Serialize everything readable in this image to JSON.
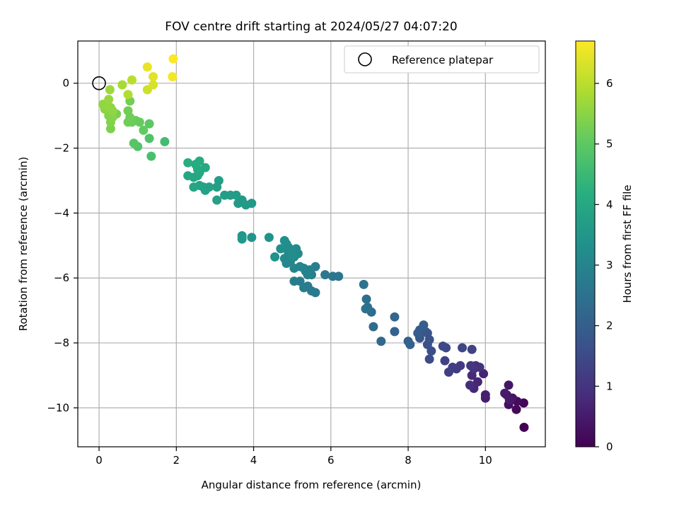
{
  "chart_data": {
    "type": "scatter",
    "title": "FOV centre drift starting at 2024/05/27 04:07:20",
    "xlabel": "Angular distance from reference (arcmin)",
    "ylabel": "Rotation from reference (arcmin)",
    "xlim": [
      -0.55,
      11.55
    ],
    "ylim": [
      -11.2,
      1.3
    ],
    "xticks": [
      0,
      2,
      4,
      6,
      8,
      10
    ],
    "yticks": [
      0,
      -2,
      -4,
      -6,
      -8,
      -10
    ],
    "xtick_labels": [
      "0",
      "2",
      "4",
      "6",
      "8",
      "10"
    ],
    "ytick_labels": [
      "0",
      "−2",
      "−4",
      "−6",
      "−8",
      "−10"
    ],
    "grid": true,
    "legend": {
      "position": "top-right",
      "entries": [
        {
          "label": "Reference platepar",
          "marker": "open-circle"
        }
      ]
    },
    "reference_point": {
      "x": 0,
      "y": 0
    },
    "colorbar": {
      "label": "Hours from first FF file",
      "colormap": "viridis",
      "range": [
        0,
        6.7
      ],
      "ticks": [
        0,
        1,
        2,
        3,
        4,
        5,
        6
      ],
      "tick_labels": [
        "0",
        "1",
        "2",
        "3",
        "4",
        "5",
        "6"
      ]
    },
    "series": [
      {
        "points": [
          {
            "x": 11.0,
            "y": -10.6,
            "h": 0.0
          },
          {
            "x": 10.99,
            "y": -9.85,
            "h": 0.1
          },
          {
            "x": 10.8,
            "y": -10.05,
            "h": 0.15
          },
          {
            "x": 10.82,
            "y": -9.8,
            "h": 0.2
          },
          {
            "x": 10.6,
            "y": -9.9,
            "h": 0.25
          },
          {
            "x": 10.55,
            "y": -9.6,
            "h": 0.3
          },
          {
            "x": 10.7,
            "y": -9.7,
            "h": 0.35
          },
          {
            "x": 10.6,
            "y": -9.3,
            "h": 0.4
          },
          {
            "x": 10.62,
            "y": -9.75,
            "h": 0.45
          },
          {
            "x": 10.5,
            "y": -9.55,
            "h": 0.5
          },
          {
            "x": 10.0,
            "y": -9.7,
            "h": 0.55
          },
          {
            "x": 10.0,
            "y": -9.6,
            "h": 0.6
          },
          {
            "x": 9.95,
            "y": -8.95,
            "h": 0.65
          },
          {
            "x": 9.8,
            "y": -9.2,
            "h": 0.7
          },
          {
            "x": 9.7,
            "y": -9.4,
            "h": 0.75
          },
          {
            "x": 9.65,
            "y": -9.0,
            "h": 0.8
          },
          {
            "x": 9.6,
            "y": -9.3,
            "h": 0.85
          },
          {
            "x": 9.75,
            "y": -8.7,
            "h": 0.9
          },
          {
            "x": 9.85,
            "y": -8.75,
            "h": 0.95
          },
          {
            "x": 9.7,
            "y": -8.8,
            "h": 1.0
          },
          {
            "x": 9.62,
            "y": -8.7,
            "h": 1.05
          },
          {
            "x": 9.35,
            "y": -8.7,
            "h": 1.1
          },
          {
            "x": 9.25,
            "y": -8.8,
            "h": 1.15
          },
          {
            "x": 9.15,
            "y": -8.75,
            "h": 1.2
          },
          {
            "x": 9.05,
            "y": -8.9,
            "h": 1.25
          },
          {
            "x": 8.95,
            "y": -8.55,
            "h": 1.3
          },
          {
            "x": 9.65,
            "y": -8.2,
            "h": 1.35
          },
          {
            "x": 9.4,
            "y": -8.15,
            "h": 1.4
          },
          {
            "x": 8.98,
            "y": -8.15,
            "h": 1.45
          },
          {
            "x": 8.9,
            "y": -8.1,
            "h": 1.5
          },
          {
            "x": 8.55,
            "y": -8.5,
            "h": 1.55
          },
          {
            "x": 8.6,
            "y": -8.25,
            "h": 1.6
          },
          {
            "x": 8.5,
            "y": -8.05,
            "h": 1.65
          },
          {
            "x": 8.55,
            "y": -7.9,
            "h": 1.7
          },
          {
            "x": 8.5,
            "y": -7.7,
            "h": 1.75
          },
          {
            "x": 8.45,
            "y": -7.65,
            "h": 1.8
          },
          {
            "x": 8.3,
            "y": -7.85,
            "h": 1.85
          },
          {
            "x": 8.3,
            "y": -7.6,
            "h": 1.9
          },
          {
            "x": 8.4,
            "y": -7.45,
            "h": 1.95
          },
          {
            "x": 8.25,
            "y": -7.7,
            "h": 2.0
          },
          {
            "x": 8.0,
            "y": -7.95,
            "h": 2.05
          },
          {
            "x": 8.05,
            "y": -8.05,
            "h": 2.1
          },
          {
            "x": 7.65,
            "y": -7.65,
            "h": 2.15
          },
          {
            "x": 7.65,
            "y": -7.2,
            "h": 2.2
          },
          {
            "x": 7.3,
            "y": -7.95,
            "h": 2.25
          },
          {
            "x": 7.1,
            "y": -7.5,
            "h": 2.3
          },
          {
            "x": 7.05,
            "y": -7.05,
            "h": 2.35
          },
          {
            "x": 6.95,
            "y": -6.9,
            "h": 2.4
          },
          {
            "x": 6.92,
            "y": -6.65,
            "h": 2.45
          },
          {
            "x": 6.9,
            "y": -6.95,
            "h": 2.5
          },
          {
            "x": 6.85,
            "y": -6.2,
            "h": 2.55
          },
          {
            "x": 6.2,
            "y": -5.95,
            "h": 2.6
          },
          {
            "x": 6.05,
            "y": -5.95,
            "h": 2.62
          },
          {
            "x": 5.85,
            "y": -5.9,
            "h": 2.65
          },
          {
            "x": 5.6,
            "y": -6.45,
            "h": 2.7
          },
          {
            "x": 5.5,
            "y": -6.4,
            "h": 2.72
          },
          {
            "x": 5.4,
            "y": -6.25,
            "h": 2.75
          },
          {
            "x": 5.3,
            "y": -6.3,
            "h": 2.78
          },
          {
            "x": 5.2,
            "y": -6.1,
            "h": 2.8
          },
          {
            "x": 5.05,
            "y": -6.1,
            "h": 2.82
          },
          {
            "x": 5.6,
            "y": -5.65,
            "h": 2.85
          },
          {
            "x": 5.5,
            "y": -5.9,
            "h": 2.88
          },
          {
            "x": 5.45,
            "y": -5.75,
            "h": 2.9
          },
          {
            "x": 5.35,
            "y": -5.8,
            "h": 2.92
          },
          {
            "x": 5.3,
            "y": -5.7,
            "h": 2.95
          },
          {
            "x": 5.4,
            "y": -5.9,
            "h": 2.97
          },
          {
            "x": 5.2,
            "y": -5.65,
            "h": 3.0
          },
          {
            "x": 5.05,
            "y": -5.7,
            "h": 3.02
          },
          {
            "x": 4.95,
            "y": -5.5,
            "h": 3.05
          },
          {
            "x": 4.85,
            "y": -5.55,
            "h": 3.07
          },
          {
            "x": 4.8,
            "y": -5.4,
            "h": 3.1
          },
          {
            "x": 4.9,
            "y": -5.2,
            "h": 3.12
          },
          {
            "x": 5.05,
            "y": -5.35,
            "h": 3.15
          },
          {
            "x": 5.15,
            "y": -5.25,
            "h": 3.17
          },
          {
            "x": 5.1,
            "y": -5.1,
            "h": 3.2
          },
          {
            "x": 5.0,
            "y": -5.3,
            "h": 3.22
          },
          {
            "x": 4.9,
            "y": -5.05,
            "h": 3.25
          },
          {
            "x": 4.85,
            "y": -4.95,
            "h": 3.27
          },
          {
            "x": 4.7,
            "y": -5.1,
            "h": 3.3
          },
          {
            "x": 4.8,
            "y": -4.85,
            "h": 3.32
          },
          {
            "x": 4.55,
            "y": -5.35,
            "h": 3.35
          },
          {
            "x": 4.4,
            "y": -4.75,
            "h": 3.4
          },
          {
            "x": 3.95,
            "y": -4.75,
            "h": 3.45
          },
          {
            "x": 3.7,
            "y": -4.7,
            "h": 3.5
          },
          {
            "x": 3.7,
            "y": -4.8,
            "h": 3.52
          },
          {
            "x": 3.95,
            "y": -3.7,
            "h": 3.55
          },
          {
            "x": 3.8,
            "y": -3.75,
            "h": 3.58
          },
          {
            "x": 3.7,
            "y": -3.6,
            "h": 3.6
          },
          {
            "x": 3.6,
            "y": -3.7,
            "h": 3.62
          },
          {
            "x": 3.55,
            "y": -3.45,
            "h": 3.65
          },
          {
            "x": 3.4,
            "y": -3.45,
            "h": 3.68
          },
          {
            "x": 3.25,
            "y": -3.45,
            "h": 3.7
          },
          {
            "x": 3.1,
            "y": -3.0,
            "h": 3.72
          },
          {
            "x": 3.05,
            "y": -3.2,
            "h": 3.75
          },
          {
            "x": 3.05,
            "y": -3.6,
            "h": 3.78
          },
          {
            "x": 2.85,
            "y": -3.2,
            "h": 3.8
          },
          {
            "x": 2.75,
            "y": -3.3,
            "h": 3.82
          },
          {
            "x": 2.7,
            "y": -3.2,
            "h": 3.85
          },
          {
            "x": 2.6,
            "y": -3.15,
            "h": 3.88
          },
          {
            "x": 2.45,
            "y": -3.2,
            "h": 3.9
          },
          {
            "x": 2.55,
            "y": -2.85,
            "h": 3.92
          },
          {
            "x": 2.45,
            "y": -2.9,
            "h": 3.95
          },
          {
            "x": 2.3,
            "y": -2.85,
            "h": 3.97
          },
          {
            "x": 2.6,
            "y": -2.75,
            "h": 4.0
          },
          {
            "x": 2.75,
            "y": -2.6,
            "h": 4.02
          },
          {
            "x": 2.55,
            "y": -2.65,
            "h": 4.05
          },
          {
            "x": 2.6,
            "y": -2.4,
            "h": 4.08
          },
          {
            "x": 2.5,
            "y": -2.5,
            "h": 4.1
          },
          {
            "x": 2.3,
            "y": -2.45,
            "h": 4.15
          },
          {
            "x": 1.7,
            "y": -1.8,
            "h": 4.6
          },
          {
            "x": 1.35,
            "y": -2.25,
            "h": 4.7
          },
          {
            "x": 1.3,
            "y": -1.7,
            "h": 4.8
          },
          {
            "x": 1.0,
            "y": -1.95,
            "h": 4.85
          },
          {
            "x": 0.9,
            "y": -1.85,
            "h": 4.9
          },
          {
            "x": 1.3,
            "y": -1.25,
            "h": 5.0
          },
          {
            "x": 1.15,
            "y": -1.45,
            "h": 5.05
          },
          {
            "x": 1.05,
            "y": -1.2,
            "h": 5.1
          },
          {
            "x": 0.95,
            "y": -1.15,
            "h": 5.12
          },
          {
            "x": 0.85,
            "y": -1.2,
            "h": 5.15
          },
          {
            "x": 0.75,
            "y": -1.2,
            "h": 5.18
          },
          {
            "x": 0.8,
            "y": -1.05,
            "h": 5.2
          },
          {
            "x": 0.75,
            "y": -0.85,
            "h": 5.22
          },
          {
            "x": 0.8,
            "y": -0.55,
            "h": 5.25
          },
          {
            "x": 0.45,
            "y": -0.95,
            "h": 5.3
          },
          {
            "x": 0.3,
            "y": -1.4,
            "h": 5.35
          },
          {
            "x": 0.3,
            "y": -1.2,
            "h": 5.4
          },
          {
            "x": 0.25,
            "y": -1.0,
            "h": 5.42
          },
          {
            "x": 0.35,
            "y": -1.05,
            "h": 5.45
          },
          {
            "x": 0.15,
            "y": -0.8,
            "h": 5.5
          },
          {
            "x": 0.3,
            "y": -0.75,
            "h": 5.52
          },
          {
            "x": 0.35,
            "y": -0.85,
            "h": 5.55
          },
          {
            "x": 0.1,
            "y": -0.65,
            "h": 5.58
          },
          {
            "x": 0.2,
            "y": -0.7,
            "h": 5.6
          },
          {
            "x": 0.25,
            "y": -0.5,
            "h": 5.65
          },
          {
            "x": 0.28,
            "y": -0.2,
            "h": 5.7
          },
          {
            "x": 0.6,
            "y": -0.05,
            "h": 5.8
          },
          {
            "x": 0.75,
            "y": -0.35,
            "h": 5.9
          },
          {
            "x": 0.85,
            "y": 0.1,
            "h": 6.0
          },
          {
            "x": 1.25,
            "y": -0.2,
            "h": 6.2
          },
          {
            "x": 1.4,
            "y": -0.05,
            "h": 6.3
          },
          {
            "x": 1.4,
            "y": 0.2,
            "h": 6.4
          },
          {
            "x": 1.25,
            "y": 0.5,
            "h": 6.5
          },
          {
            "x": 1.9,
            "y": 0.2,
            "h": 6.6
          },
          {
            "x": 1.92,
            "y": 0.75,
            "h": 6.7
          }
        ]
      }
    ]
  }
}
